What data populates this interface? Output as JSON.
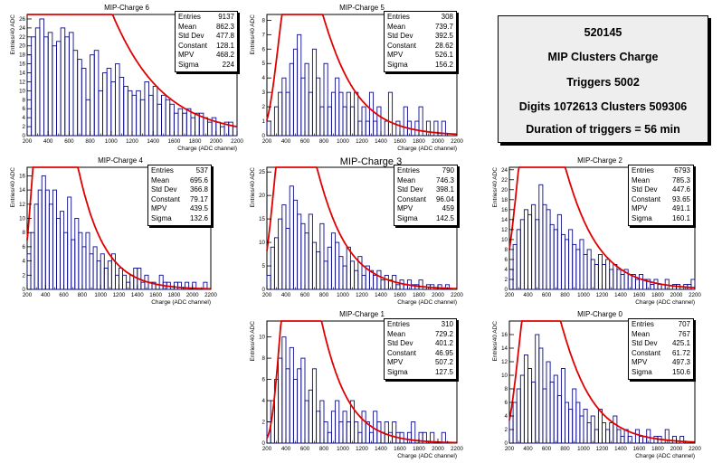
{
  "info_panel": {
    "run": "520145",
    "title": "MIP Clusters Charge",
    "triggers": "Triggers 5002",
    "digits": "Digits 1072613 Clusters 509306",
    "duration": "Duration of triggers = 56 min"
  },
  "stat_labels": [
    "Entries",
    "Mean",
    "Std Dev",
    "Constant",
    "MPV",
    "Sigma"
  ],
  "chart_data": [
    {
      "type": "bar",
      "title": "MIP-Charge 6",
      "xlabel": "Charge (ADC channel)",
      "ylabel": "Entries/40 ADC",
      "xlim": [
        200,
        2200
      ],
      "ylim": [
        0,
        27
      ],
      "xticks": [
        200,
        400,
        600,
        800,
        1000,
        1200,
        1400,
        1600,
        1800,
        2000,
        2200
      ],
      "yticks": [
        0,
        2,
        4,
        6,
        8,
        10,
        12,
        14,
        16,
        18,
        20,
        22,
        24,
        26
      ],
      "bin_width": 40,
      "values": [
        18,
        22,
        24,
        26,
        22,
        23,
        20,
        21,
        24,
        22,
        23,
        19,
        17,
        15,
        8,
        18,
        19,
        10,
        14,
        15,
        12,
        16,
        13,
        11,
        10,
        9,
        10,
        8,
        12,
        9,
        11,
        7,
        9,
        8,
        7,
        5,
        6,
        5,
        6,
        4,
        5,
        5,
        4,
        3,
        4,
        3,
        2,
        3,
        3,
        2
      ],
      "fit": {
        "constant": 128.1,
        "mpv": 468.2,
        "sigma": 224
      },
      "stats": {
        "entries": "9137",
        "mean": "862.3",
        "std_dev": "477.8",
        "constant": "128.1",
        "mpv": "468.2",
        "sigma": "224"
      }
    },
    {
      "type": "bar",
      "title": "MIP-Charge 5",
      "xlabel": "Charge (ADC channel)",
      "ylabel": "Entries/40 ADC",
      "xlim": [
        200,
        2200
      ],
      "ylim": [
        0,
        8.4
      ],
      "xticks": [
        200,
        400,
        600,
        800,
        1000,
        1200,
        1400,
        1600,
        1800,
        2000,
        2200
      ],
      "yticks": [
        0,
        1,
        2,
        3,
        4,
        5,
        6,
        7,
        8
      ],
      "bin_width": 40,
      "values": [
        1,
        0,
        2,
        3,
        4,
        3,
        5,
        6,
        7,
        4,
        5,
        3,
        6,
        4,
        2,
        5,
        2,
        3,
        4,
        3,
        2,
        3,
        2,
        3,
        1,
        2,
        1,
        3,
        1,
        2,
        0,
        1,
        3,
        0,
        1,
        0,
        2,
        1,
        0,
        1,
        2,
        0,
        1,
        0,
        1,
        0,
        1,
        0,
        0,
        0
      ],
      "fit": {
        "constant": 28.62,
        "mpv": 526.1,
        "sigma": 156.2
      },
      "stats": {
        "entries": "308",
        "mean": "739.7",
        "std_dev": "392.5",
        "constant": "28.62",
        "mpv": "526.1",
        "sigma": "156.2"
      }
    },
    {
      "type": "bar",
      "title": "MIP-Charge 4",
      "xlabel": "Charge (ADC channel)",
      "ylabel": "Entries/40 ADC",
      "xlim": [
        200,
        2200
      ],
      "ylim": [
        0,
        17.2
      ],
      "xticks": [
        200,
        400,
        600,
        800,
        1000,
        1200,
        1400,
        1600,
        1800,
        2000,
        2200
      ],
      "yticks": [
        0,
        2,
        4,
        6,
        8,
        10,
        12,
        14,
        16
      ],
      "bin_width": 40,
      "values": [
        5,
        8,
        12,
        14,
        16,
        14,
        12,
        14,
        10,
        11,
        8,
        13,
        7,
        10,
        8,
        6,
        8,
        5,
        6,
        4,
        5,
        3,
        4,
        5,
        2,
        3,
        2,
        1,
        2,
        3,
        3,
        1,
        2,
        1,
        1,
        0,
        2,
        1,
        1,
        0,
        1,
        1,
        0,
        1,
        0,
        1,
        0,
        0,
        1,
        0
      ],
      "fit": {
        "constant": 79.17,
        "mpv": 439.5,
        "sigma": 132.6
      },
      "stats": {
        "entries": "537",
        "mean": "695.6",
        "std_dev": "366.8",
        "constant": "79.17",
        "mpv": "439.5",
        "sigma": "132.6"
      }
    },
    {
      "type": "bar",
      "title": "MIP-Charge 3",
      "xlabel": "Charge (ADC channel)",
      "ylabel": "Entries/40 ADC",
      "xlim": [
        200,
        2200
      ],
      "ylim": [
        0,
        26
      ],
      "xticks": [
        200,
        400,
        600,
        800,
        1000,
        1200,
        1400,
        1600,
        1800,
        2000,
        2200
      ],
      "yticks": [
        0,
        5,
        10,
        15,
        20,
        25
      ],
      "bin_width": 40,
      "values": [
        3,
        9,
        11,
        15,
        18,
        13,
        22,
        19,
        16,
        14,
        12,
        16,
        10,
        8,
        14,
        6,
        9,
        12,
        10,
        7,
        5,
        9,
        6,
        4,
        7,
        3,
        5,
        4,
        3,
        4,
        2,
        3,
        2,
        3,
        1,
        2,
        1,
        2,
        1,
        1,
        2,
        0,
        1,
        1,
        0,
        1,
        0,
        1,
        0,
        0
      ],
      "fit": {
        "constant": 96.04,
        "mpv": 459,
        "sigma": 142.5
      },
      "stats": {
        "entries": "790",
        "mean": "746.3",
        "std_dev": "398.1",
        "constant": "96.04",
        "mpv": "459",
        "sigma": "142.5"
      }
    },
    {
      "type": "bar",
      "title": "MIP-Charge 2",
      "xlabel": "Charge (ADC channel)",
      "ylabel": "Entries/40 ADC",
      "xlim": [
        200,
        2200
      ],
      "ylim": [
        0,
        24.5
      ],
      "xticks": [
        200,
        400,
        600,
        800,
        1000,
        1200,
        1400,
        1600,
        1800,
        2000,
        2200
      ],
      "yticks": [
        0,
        2,
        4,
        6,
        8,
        10,
        12,
        14,
        16,
        18,
        20,
        22,
        24
      ],
      "bin_width": 40,
      "values": [
        4,
        9,
        12,
        14,
        16,
        15,
        17,
        14,
        21,
        17,
        16,
        13,
        12,
        15,
        11,
        10,
        12,
        9,
        8,
        10,
        7,
        8,
        6,
        5,
        7,
        5,
        6,
        4,
        5,
        4,
        3,
        4,
        3,
        3,
        2,
        3,
        2,
        2,
        1,
        2,
        1,
        1,
        2,
        0,
        1,
        1,
        0,
        1,
        1,
        2
      ],
      "fit": {
        "constant": 93.65,
        "mpv": 491.1,
        "sigma": 160.1
      },
      "stats": {
        "entries": "6793",
        "mean": "785.3",
        "std_dev": "447.6",
        "constant": "93.65",
        "mpv": "491.1",
        "sigma": "160.1"
      }
    },
    {
      "type": "bar",
      "title": "MIP-Charge 1",
      "xlabel": "Charge (ADC channel)",
      "ylabel": "Entries/40 ADC",
      "xlim": [
        200,
        2200
      ],
      "ylim": [
        0,
        11.5
      ],
      "xticks": [
        200,
        400,
        600,
        800,
        1000,
        1200,
        1400,
        1600,
        1800,
        2000,
        2200
      ],
      "yticks": [
        0,
        2,
        4,
        6,
        8,
        10
      ],
      "bin_width": 40,
      "values": [
        2,
        4,
        6,
        8,
        10,
        7,
        9,
        6,
        7,
        8,
        4,
        5,
        7,
        3,
        4,
        2,
        1,
        3,
        4,
        2,
        3,
        2,
        4,
        2,
        1,
        3,
        2,
        1,
        3,
        2,
        1,
        2,
        1,
        2,
        1,
        1,
        0,
        1,
        2,
        0,
        1,
        1,
        0,
        1,
        0,
        0,
        1,
        0,
        0,
        0
      ],
      "fit": {
        "constant": 46.95,
        "mpv": 507.2,
        "sigma": 127.5
      },
      "stats": {
        "entries": "310",
        "mean": "729.2",
        "std_dev": "401.2",
        "constant": "46.95",
        "mpv": "507.2",
        "sigma": "127.5"
      }
    },
    {
      "type": "bar",
      "title": "MIP-Charge 0",
      "xlabel": "Charge (ADC channel)",
      "ylabel": "Entries/40 ADC",
      "xlim": [
        200,
        2200
      ],
      "ylim": [
        0,
        18
      ],
      "xticks": [
        200,
        400,
        600,
        800,
        1000,
        1200,
        1400,
        1600,
        1800,
        2000,
        2200
      ],
      "yticks": [
        0,
        2,
        4,
        6,
        8,
        10,
        12,
        14,
        16
      ],
      "bin_width": 40,
      "values": [
        4,
        6,
        8,
        10,
        13,
        11,
        9,
        16,
        14,
        8,
        12,
        9,
        10,
        7,
        11,
        6,
        5,
        8,
        6,
        4,
        5,
        3,
        4,
        2,
        5,
        3,
        2,
        3,
        4,
        2,
        1,
        2,
        1,
        0,
        2,
        1,
        1,
        2,
        0,
        1,
        1,
        0,
        2,
        0,
        1,
        0,
        1,
        0,
        0,
        0
      ],
      "fit": {
        "constant": 61.72,
        "mpv": 497.3,
        "sigma": 150.6
      },
      "stats": {
        "entries": "707",
        "mean": "767",
        "std_dev": "425.1",
        "constant": "61.72",
        "mpv": "497.3",
        "sigma": "150.6"
      }
    }
  ]
}
